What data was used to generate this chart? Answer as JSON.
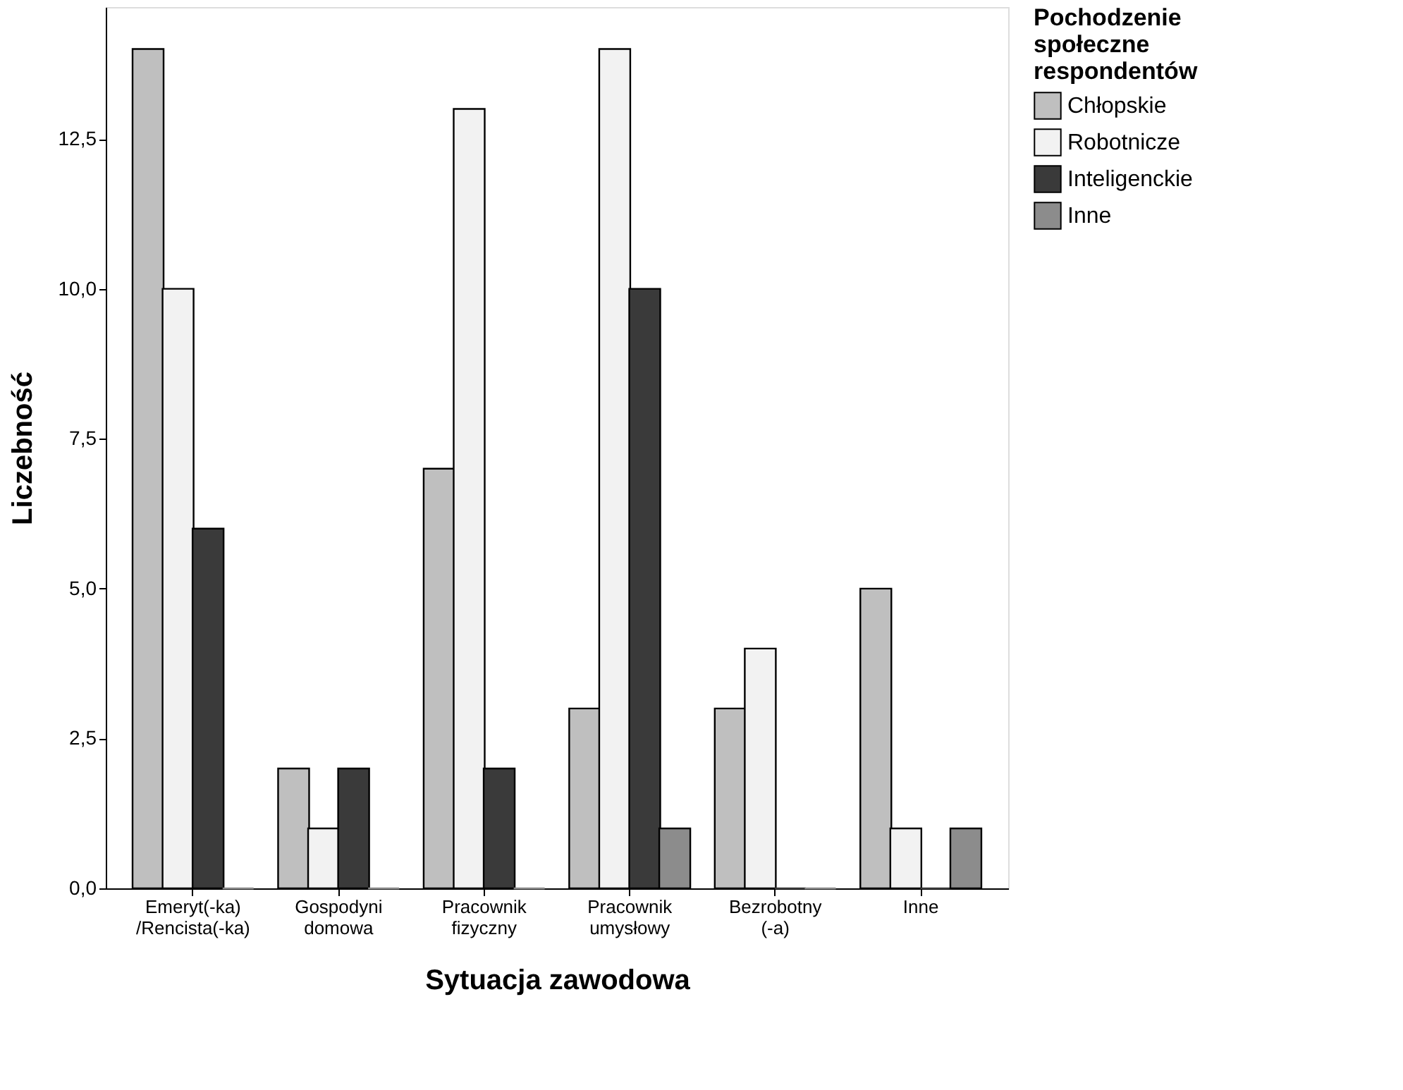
{
  "chart_data": {
    "type": "bar",
    "xlabel": "Sytuacja zawodowa",
    "ylabel": "Liczebność",
    "legend_title": "Pochodzenie społeczne respondentów",
    "categories": [
      "Emeryt(-ka) /Rencista(-ka)",
      "Gospodyni domowa",
      "Pracownik fizyczny",
      "Pracownik umysłowy",
      "Bezrobotny (-a)",
      "Inne"
    ],
    "series": [
      {
        "name": "Chłopskie",
        "color": "#bfbfbf",
        "values": [
          14,
          2,
          7,
          3,
          3,
          5
        ]
      },
      {
        "name": "Robotnicze",
        "color": "#f2f2f2",
        "values": [
          10,
          1,
          13,
          14,
          4,
          1
        ]
      },
      {
        "name": "Inteligenckie",
        "color": "#3a3a3a",
        "values": [
          6,
          2,
          2,
          10,
          0,
          0
        ]
      },
      {
        "name": "Inne",
        "color": "#8c8c8c",
        "values": [
          0,
          0,
          0,
          1,
          0,
          1
        ]
      }
    ],
    "ylim": [
      0,
      14.7
    ],
    "yticks": [
      {
        "value": 0,
        "label": "0,0"
      },
      {
        "value": 2.5,
        "label": "2,5"
      },
      {
        "value": 5,
        "label": "5,0"
      },
      {
        "value": 7.5,
        "label": "7,5"
      },
      {
        "value": 10,
        "label": "10,0"
      },
      {
        "value": 12.5,
        "label": "12,5"
      }
    ],
    "grid": false,
    "legend": "top right"
  }
}
